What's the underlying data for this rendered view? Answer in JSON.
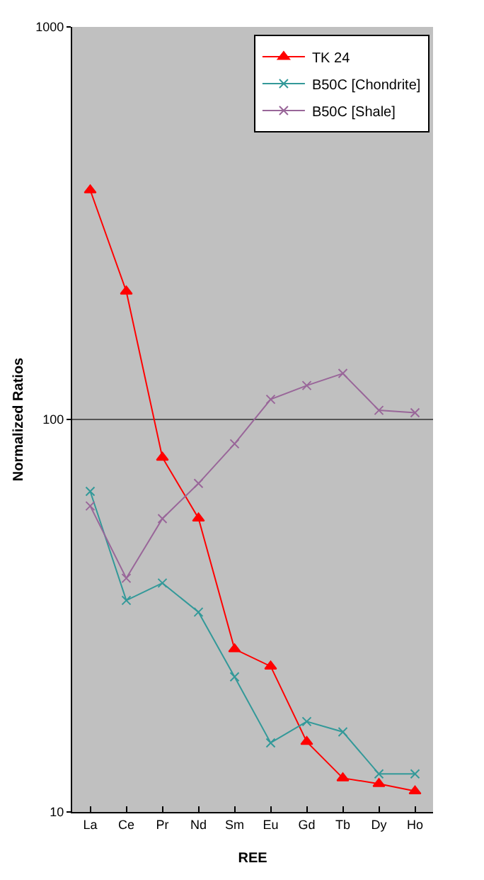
{
  "chart_data": {
    "type": "line",
    "xlabel": "REE",
    "ylabel": "Normalized Ratios",
    "categories": [
      "La",
      "Ce",
      "Pr",
      "Nd",
      "Sm",
      "Eu",
      "Gd",
      "Tb",
      "Dy",
      "Ho"
    ],
    "series": [
      {
        "name": "TK 24",
        "color": "#ff0000",
        "marker": "triangle",
        "values": [
          384,
          212,
          80,
          56,
          26,
          23.5,
          15.1,
          12.2,
          11.8,
          11.3
        ]
      },
      {
        "name": "B50C [Chondrite]",
        "color": "#339999",
        "marker": "cross",
        "values": [
          65.6,
          34.6,
          38.3,
          32.3,
          22.1,
          15.0,
          17.0,
          16.0,
          12.5,
          12.5
        ]
      },
      {
        "name": "B50C [Shale]",
        "color": "#996699",
        "marker": "cross",
        "values": [
          60.2,
          39.4,
          55.9,
          68.7,
          86.7,
          112.5,
          122,
          131,
          105.5,
          104
        ]
      }
    ],
    "log": "y",
    "ylim": [
      10,
      1000
    ],
    "yticks": [
      10,
      100,
      1000
    ],
    "grid": "y",
    "legend": "top right",
    "line_style": "solid"
  }
}
